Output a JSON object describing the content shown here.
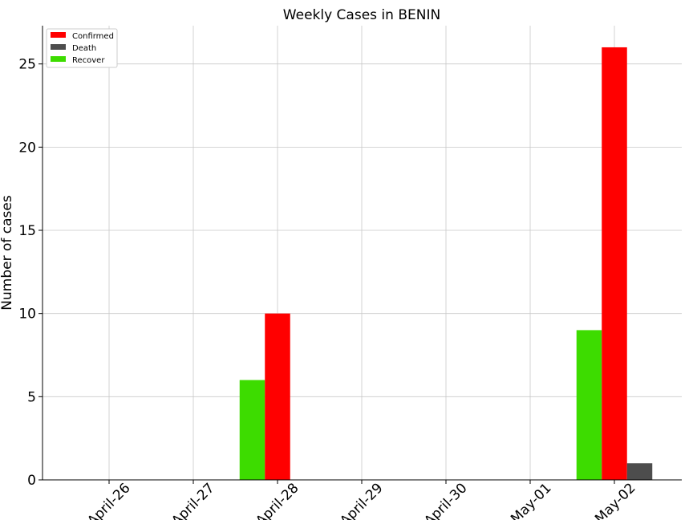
{
  "chart_data": {
    "type": "bar",
    "title": "Weekly Cases in BENIN",
    "xlabel": "",
    "ylabel": "Number of cases",
    "categories": [
      "April-26",
      "April-27",
      "April-28",
      "April-29",
      "April-30",
      "May-01",
      "May-02"
    ],
    "series": [
      {
        "name": "Confirmed",
        "color": "#ff0000",
        "values": [
          0,
          0,
          10,
          0,
          0,
          0,
          26
        ]
      },
      {
        "name": "Death",
        "color": "#4d4d4d",
        "values": [
          0,
          0,
          0,
          0,
          0,
          0,
          1
        ]
      },
      {
        "name": "Recover",
        "color": "#3ddc00",
        "values": [
          0,
          0,
          6,
          0,
          0,
          0,
          9
        ]
      }
    ],
    "ylim": [
      0,
      27.3
    ],
    "yticks": [
      0,
      5,
      10,
      15,
      20,
      25
    ],
    "grid": true,
    "legend_position": "top-left"
  }
}
